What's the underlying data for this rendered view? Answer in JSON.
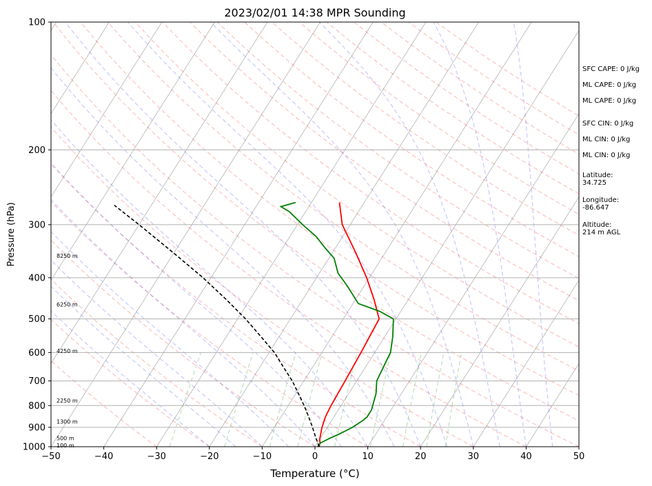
{
  "chart_data": {
    "type": "line",
    "subtype": "skew-t log-p sounding",
    "title": "2023/02/01 14:38 MPR Sounding",
    "xlabel": "Temperature (°C)",
    "ylabel": "Pressure (hPa)",
    "xlim": [
      -50,
      50
    ],
    "ylim": [
      1000,
      100
    ],
    "y_scale": "log",
    "x_ticks": [
      "−50",
      "−40",
      "−30",
      "−20",
      "−10",
      "0",
      "10",
      "20",
      "30",
      "40",
      "50"
    ],
    "y_ticks": [
      "100",
      "200",
      "300",
      "400",
      "500",
      "600",
      "700",
      "800",
      "900",
      "1000"
    ],
    "grid": true,
    "height_labels": [
      {
        "p": 355,
        "text": "8250 m"
      },
      {
        "p": 462,
        "text": "6250 m"
      },
      {
        "p": 595,
        "text": "4250 m"
      },
      {
        "p": 778,
        "text": "2250 m"
      },
      {
        "p": 872,
        "text": "1300 m"
      },
      {
        "p": 955,
        "text": "500 m"
      },
      {
        "p": 992,
        "text": "100 m"
      }
    ],
    "series": [
      {
        "color": "#ff0000",
        "points": [
          [
            0.8,
            1000
          ],
          [
            0.5,
            980
          ],
          [
            0.0,
            960
          ],
          [
            -0.5,
            930
          ],
          [
            -1.0,
            900
          ],
          [
            -1.6,
            850
          ],
          [
            -1.9,
            800
          ],
          [
            -2.2,
            700
          ],
          [
            -2.6,
            600
          ],
          [
            -3.2,
            500
          ],
          [
            -6.5,
            450
          ],
          [
            -10.5,
            400
          ],
          [
            -15.5,
            350
          ],
          [
            -21.5,
            300
          ],
          [
            -24.7,
            266
          ]
        ]
      },
      {
        "color": "#008000",
        "points": [
          [
            0.5,
            1000
          ],
          [
            0.6,
            980
          ],
          [
            1.8,
            955
          ],
          [
            3.0,
            935
          ],
          [
            4.8,
            900
          ],
          [
            6.0,
            865
          ],
          [
            6.3,
            850
          ],
          [
            6.3,
            820
          ],
          [
            6.0,
            800
          ],
          [
            5.2,
            750
          ],
          [
            3.8,
            700
          ],
          [
            3.4,
            650
          ],
          [
            3.0,
            600
          ],
          [
            1.5,
            550
          ],
          [
            -0.5,
            500
          ],
          [
            -4.0,
            480
          ],
          [
            -9.0,
            460
          ],
          [
            -13.0,
            420
          ],
          [
            -16.5,
            390
          ],
          [
            -19.0,
            360
          ],
          [
            -22.0,
            340
          ],
          [
            -25.0,
            320
          ],
          [
            -29.0,
            300
          ],
          [
            -33.0,
            280
          ],
          [
            -35.3,
            272
          ],
          [
            -33.0,
            266
          ]
        ]
      },
      {
        "color": "#000000",
        "style": "dashed",
        "points": [
          [
            0.8,
            1000
          ],
          [
            -1.0,
            950
          ],
          [
            -2.8,
            900
          ],
          [
            -4.8,
            850
          ],
          [
            -7.0,
            800
          ],
          [
            -9.5,
            750
          ],
          [
            -12.2,
            700
          ],
          [
            -15.5,
            650
          ],
          [
            -19.0,
            600
          ],
          [
            -23.5,
            550
          ],
          [
            -28.5,
            500
          ],
          [
            -34.5,
            450
          ],
          [
            -41.5,
            400
          ],
          [
            -50.0,
            350
          ],
          [
            -60.0,
            300
          ],
          [
            -67.0,
            270
          ]
        ]
      }
    ],
    "background_lines": {
      "dry_adiabats_color": "#ff0000",
      "moist_adiabats_color": "#0000ff",
      "mixing_ratio_color": "#008000",
      "isotherm_color": "#808080"
    }
  },
  "info_panel": {
    "sfc_cape": "SFC CAPE: 0 J/kg",
    "ml_cape": "ML CAPE: 0 J/kg",
    "ml_cape_2": "ML CAPE: 0 J/kg",
    "sfc_cin": "SFC CIN: 0 J/kg",
    "ml_cin": "ML CIN: 0 J/kg",
    "ml_cin_2": "ML CIN: 0 J/kg",
    "latitude_label": "Latitude:",
    "latitude_value": "34.725",
    "longitude_label": "Longitude:",
    "longitude_value": "-86.647",
    "altitude_label": "Altitude:",
    "altitude_value": "214 m AGL"
  }
}
